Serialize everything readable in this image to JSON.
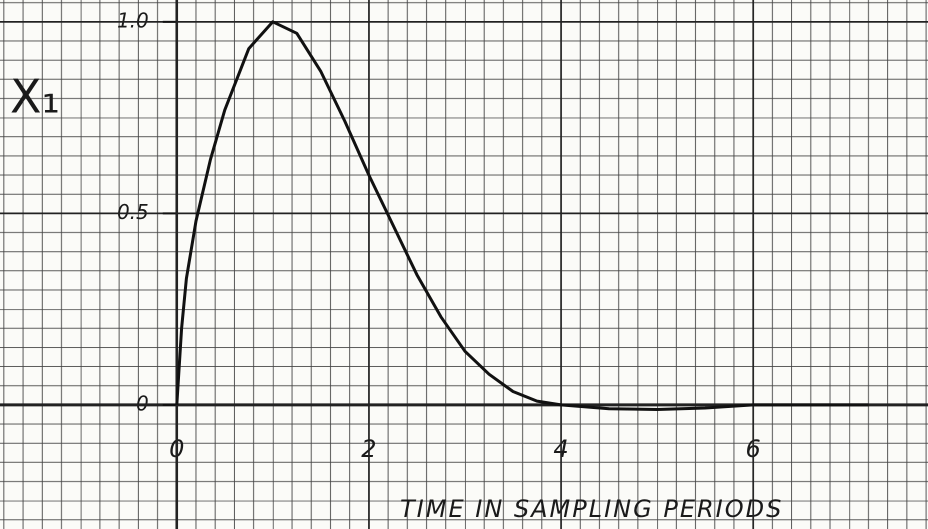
{
  "chart_data": {
    "type": "line",
    "y_label": "X₁",
    "x_label": "TIME IN SAMPLING PERIODS",
    "x": [
      0,
      0.05,
      0.1,
      0.2,
      0.35,
      0.5,
      0.75,
      1,
      1.25,
      1.5,
      1.75,
      2,
      2.25,
      2.5,
      2.75,
      3,
      3.25,
      3.5,
      3.75,
      4,
      4.5,
      5,
      5.5,
      6,
      6.5,
      7.2
    ],
    "series": [
      {
        "color": "#111111",
        "values": [
          0,
          0.2,
          0.33,
          0.48,
          0.64,
          0.77,
          0.93,
          1.0,
          0.97,
          0.87,
          0.74,
          0.6,
          0.47,
          0.34,
          0.23,
          0.14,
          0.08,
          0.035,
          0.01,
          0,
          -0.01,
          -0.012,
          -0.008,
          0,
          0,
          0
        ]
      }
    ],
    "xlim": [
      -1.84,
      7.82
    ],
    "ylim": [
      -0.324,
      1.057
    ],
    "xticks": [
      0,
      2,
      4,
      6
    ],
    "yticks": [
      0,
      0.5,
      {
        "value": 1,
        "label": "1.0"
      }
    ],
    "grid": true
  }
}
